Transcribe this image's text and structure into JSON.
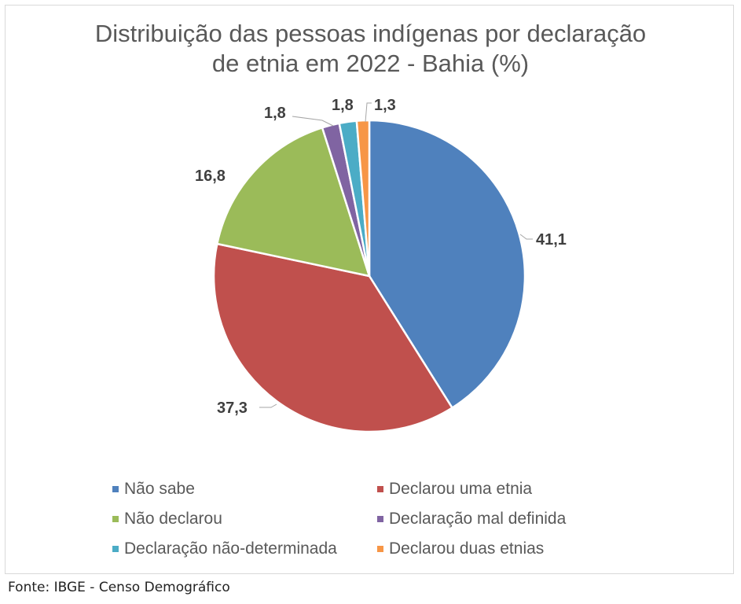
{
  "chart_data": {
    "type": "pie",
    "title": "Distribuição das pessoas indígenas por declaração de etnia em 2022 - Bahia (%)",
    "title_lines": [
      "Distribuição das pessoas indígenas por declaração",
      "de etnia em 2022 - Bahia (%)"
    ],
    "categories": [
      "Não sabe",
      "Declarou uma etnia",
      "Não declarou",
      "Declaração mal definida",
      "Declaração não-determinada",
      "Declarou duas etnias"
    ],
    "values": [
      41.1,
      37.3,
      16.8,
      1.8,
      1.8,
      1.3
    ],
    "value_labels": [
      "41,1",
      "37,3",
      "16,8",
      "1,8",
      "1,8",
      "1,3"
    ],
    "colors": [
      "#4f81bd",
      "#c0504d",
      "#9bbb59",
      "#8064a2",
      "#4bacc6",
      "#f79646"
    ],
    "legend_position": "bottom",
    "start_angle": "12 o'clock, clockwise"
  },
  "legend": {
    "items": [
      {
        "label": "Não sabe",
        "color": "#4f81bd"
      },
      {
        "label": "Declarou uma etnia",
        "color": "#c0504d"
      },
      {
        "label": "Não declarou",
        "color": "#9bbb59"
      },
      {
        "label": "Declaração mal definida",
        "color": "#8064a2"
      },
      {
        "label": "Declaração não-determinada",
        "color": "#4bacc6"
      },
      {
        "label": "Declarou duas etnias",
        "color": "#f79646"
      }
    ]
  },
  "footer": {
    "source": "Fonte: IBGE - Censo Demográfico"
  }
}
